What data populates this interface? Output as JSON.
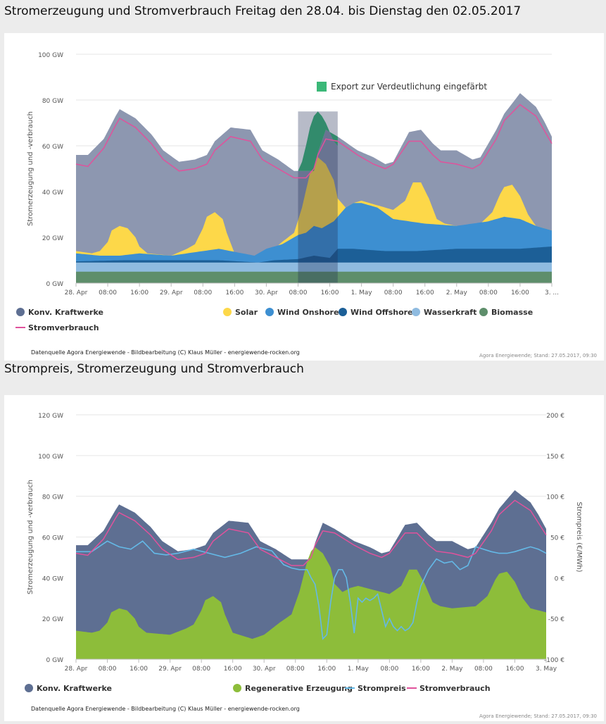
{
  "page": {
    "title1": "Stromerzeugung und Stromverbrauch  Freitag den 28.04. bis Dienstag den 02.05.2017",
    "title2": "Strompreis, Stromerzeugung und Stromverbrauch"
  },
  "colors": {
    "konv": "#8d97b0",
    "konv2": "#5e6f92",
    "solar": "#fdd849",
    "wind_onshore": "#3d8fd1",
    "wind_offshore": "#1c5f97",
    "wasserkraft": "#8fbbe0",
    "biomasse": "#5e8e6b",
    "export": "#3bb878",
    "verbrauch": "#e0529c",
    "strompreis": "#64b9e7",
    "regenerativ": "#8dbd3a"
  },
  "chart_data": [
    {
      "type": "area",
      "title": "Stromerzeugung und Stromverbrauch  Freitag den 28.04. bis Dienstag den 02.05.2017",
      "xlabel": "",
      "ylabel": "Stromerzeugung und -verbrauch",
      "ylim": [
        0,
        100
      ],
      "yticks": [
        "0 GW",
        "20 GW",
        "40 GW",
        "60 GW",
        "80 GW",
        "100 GW"
      ],
      "xticks": [
        "28. Apr",
        "08:00",
        "16:00",
        "29. Apr",
        "08:00",
        "16:00",
        "30. Apr",
        "08:00",
        "16:00",
        "1. May",
        "08:00",
        "16:00",
        "2. May",
        "08:00",
        "16:00",
        "3. ..."
      ],
      "x_hours": [
        0,
        8,
        16,
        24,
        32,
        40,
        48,
        56,
        64,
        72,
        80,
        88,
        96,
        104,
        112,
        120
      ],
      "x_range": [
        0,
        120
      ],
      "highlight_hours": [
        56,
        66
      ],
      "annotation": "Export zur Verdeutlichung eingefärbt",
      "series": [
        {
          "name": "Konv. Kraftwerke",
          "kind": "total",
          "x": [
            0,
            3,
            7,
            10,
            11,
            15,
            19,
            22,
            26,
            30,
            33,
            35,
            39,
            44,
            47,
            51,
            55,
            58,
            60,
            61,
            63,
            66,
            71,
            75,
            78,
            80,
            84,
            87,
            90,
            92,
            96,
            100,
            102,
            106,
            108,
            112,
            116,
            118,
            120
          ],
          "values": [
            56,
            56,
            63,
            73,
            76,
            72,
            65,
            58,
            53,
            54,
            56,
            62,
            68,
            67,
            58,
            54,
            49,
            49,
            49,
            57,
            67,
            64,
            58,
            55,
            52,
            53,
            66,
            67,
            61,
            58,
            58,
            54,
            55,
            67,
            74,
            83,
            77,
            71,
            64
          ]
        },
        {
          "name": "Export",
          "kind": "export_top",
          "x": [
            56,
            57,
            58,
            59,
            60,
            61,
            62,
            63,
            64,
            65,
            66
          ],
          "values": [
            49,
            53,
            60,
            68,
            73,
            75,
            73,
            70,
            66,
            62,
            60
          ]
        },
        {
          "name": "Solar",
          "kind": "top",
          "x": [
            0,
            4,
            6,
            8,
            9,
            11,
            13,
            15,
            16,
            18,
            24,
            28,
            30,
            32,
            33,
            35,
            37,
            38,
            40,
            45,
            48,
            52,
            55,
            57,
            59,
            60,
            61,
            63,
            65,
            66,
            68,
            70,
            72,
            76,
            80,
            83,
            84,
            85,
            87,
            89,
            91,
            93,
            96,
            102,
            105,
            107,
            108,
            110,
            112,
            114,
            116,
            120
          ],
          "values": [
            14,
            13,
            14,
            18,
            23,
            25,
            24,
            20,
            16,
            13,
            12,
            15,
            17,
            24,
            29,
            31,
            28,
            22,
            13,
            10,
            12,
            18,
            22,
            33,
            48,
            53,
            55,
            52,
            45,
            37,
            33,
            35,
            36,
            34,
            32,
            36,
            40,
            44,
            44,
            37,
            28,
            26,
            25,
            26,
            31,
            39,
            42,
            43,
            38,
            30,
            25,
            23
          ]
        },
        {
          "name": "Wind Onshore",
          "kind": "top",
          "x": [
            0,
            6,
            11,
            16,
            24,
            32,
            36,
            42,
            45,
            48,
            52,
            56,
            58,
            60,
            62,
            65,
            68,
            70,
            72,
            76,
            80,
            88,
            96,
            104,
            108,
            112,
            116,
            120
          ],
          "values": [
            13,
            12,
            12,
            13,
            12,
            14,
            15,
            13,
            12,
            15,
            17,
            21,
            22,
            25,
            24,
            27,
            33,
            35,
            35,
            33,
            28,
            26,
            25,
            27,
            29,
            28,
            25,
            23
          ]
        },
        {
          "name": "Wind Offshore",
          "kind": "top",
          "x": [
            0,
            12,
            24,
            36,
            46,
            50,
            56,
            60,
            64,
            66,
            70,
            78,
            86,
            96,
            104,
            112,
            120
          ],
          "values": [
            9.5,
            10,
            10,
            10,
            9,
            10,
            10.5,
            12,
            11,
            15,
            15,
            14,
            14,
            15,
            15,
            15,
            16
          ]
        },
        {
          "name": "Wasserkraft",
          "kind": "top",
          "x": [
            0,
            120
          ],
          "values": [
            9,
            9
          ]
        },
        {
          "name": "Biomasse",
          "kind": "top",
          "x": [
            0,
            120
          ],
          "values": [
            5,
            5
          ]
        },
        {
          "name": "Stromverbrauch",
          "kind": "line",
          "x": [
            0,
            3,
            7,
            10,
            11,
            15,
            19,
            22,
            26,
            30,
            33,
            35,
            39,
            44,
            47,
            51,
            55,
            58,
            60,
            61,
            63,
            66,
            71,
            75,
            78,
            80,
            84,
            87,
            90,
            92,
            96,
            100,
            102,
            106,
            108,
            112,
            116,
            118,
            120
          ],
          "values": [
            52,
            51,
            59,
            69,
            72,
            68,
            61,
            54,
            49,
            50,
            52,
            58,
            64,
            62,
            54,
            50,
            46,
            46,
            50,
            56,
            63,
            62,
            56,
            52,
            50,
            52,
            62,
            62,
            56,
            53,
            52,
            50,
            52,
            63,
            71,
            78,
            73,
            67,
            61
          ]
        }
      ],
      "legend": [
        "Konv. Kraftwerke",
        "Solar",
        "Wind Onshore",
        "Wind Offshore",
        "Wasserkraft",
        "Biomasse",
        "Stromverbrauch"
      ],
      "source": "Datenquelle Agora Energiewende - Bildbearbeitung  (C) Klaus Müller - energiewende-rocken.org",
      "credit": "Agora Energiewende; Stand: 27.05.2017, 09:30"
    },
    {
      "type": "area",
      "title": "Strompreis, Stromerzeugung und Stromverbrauch",
      "xlabel": "",
      "ylabel": "Stromerzeugung und -verbrauch",
      "y2label": "Strompreis (€/MWh)",
      "ylim": [
        0,
        120
      ],
      "y2lim": [
        -100,
        200
      ],
      "yticks": [
        "0 GW",
        "20 GW",
        "40 GW",
        "60 GW",
        "80 GW",
        "100 GW",
        "120 GW"
      ],
      "y2ticks": [
        "-100 €",
        "-50 €",
        "0 €",
        "50 €",
        "100 €",
        "150 €",
        "200 €"
      ],
      "xticks": [
        "28. Apr",
        "08:00",
        "16:00",
        "29. Apr",
        "08:00",
        "16:00",
        "30. Apr",
        "08:00",
        "16:00",
        "1. May",
        "08:00",
        "16:00",
        "2. May",
        "08:00",
        "16:00",
        "3. May"
      ],
      "x_hours": [
        0,
        8,
        16,
        24,
        32,
        40,
        48,
        56,
        64,
        72,
        80,
        88,
        96,
        104,
        112,
        120
      ],
      "x_range": [
        0,
        120
      ],
      "series": [
        {
          "name": "Konv. Kraftwerke",
          "kind": "total",
          "x": [
            0,
            3,
            7,
            10,
            11,
            15,
            19,
            22,
            26,
            30,
            33,
            35,
            39,
            44,
            47,
            51,
            55,
            58,
            60,
            61,
            63,
            66,
            71,
            75,
            78,
            80,
            84,
            87,
            90,
            92,
            96,
            100,
            102,
            106,
            108,
            112,
            116,
            118,
            120
          ],
          "values": [
            56,
            56,
            63,
            73,
            76,
            72,
            65,
            58,
            53,
            54,
            56,
            62,
            68,
            67,
            58,
            54,
            49,
            49,
            49,
            57,
            67,
            64,
            58,
            55,
            52,
            53,
            66,
            67,
            61,
            58,
            58,
            54,
            55,
            67,
            74,
            83,
            77,
            71,
            64
          ]
        },
        {
          "name": "Regenerative Erzeugung",
          "kind": "top",
          "x": [
            0,
            4,
            6,
            8,
            9,
            11,
            13,
            15,
            16,
            18,
            24,
            28,
            30,
            32,
            33,
            35,
            37,
            38,
            40,
            45,
            48,
            52,
            55,
            57,
            59,
            60,
            61,
            63,
            65,
            66,
            68,
            70,
            72,
            76,
            80,
            83,
            84,
            85,
            87,
            89,
            91,
            93,
            96,
            102,
            105,
            107,
            108,
            110,
            112,
            114,
            116,
            120
          ],
          "values": [
            14,
            13,
            14,
            18,
            23,
            25,
            24,
            20,
            16,
            13,
            12,
            15,
            17,
            24,
            29,
            31,
            28,
            22,
            13,
            10,
            12,
            18,
            22,
            33,
            48,
            53,
            55,
            52,
            45,
            37,
            33,
            35,
            36,
            34,
            32,
            36,
            40,
            44,
            44,
            37,
            28,
            26,
            25,
            26,
            31,
            39,
            42,
            43,
            38,
            30,
            25,
            23
          ]
        },
        {
          "name": "Strompreis",
          "kind": "price",
          "x": [
            0,
            4,
            8,
            11,
            14,
            17,
            20,
            23,
            26,
            30,
            34,
            38,
            42,
            46,
            50,
            53,
            55,
            57,
            59,
            60,
            61,
            62,
            63,
            64,
            65,
            66,
            67,
            68,
            69,
            70,
            71,
            72,
            73,
            74,
            75,
            76,
            77,
            78,
            79,
            80,
            81,
            82,
            83,
            84,
            85,
            86,
            87,
            88,
            90,
            92,
            94,
            96,
            98,
            100,
            102,
            104,
            106,
            108,
            110,
            112,
            114,
            116,
            118,
            120
          ],
          "values": [
            32,
            32,
            45,
            38,
            35,
            45,
            30,
            28,
            30,
            35,
            30,
            25,
            30,
            38,
            33,
            16,
            12,
            10,
            10,
            0,
            -8,
            -35,
            -75,
            -70,
            -30,
            0,
            10,
            10,
            0,
            -30,
            -68,
            -25,
            -30,
            -25,
            -28,
            -25,
            -20,
            -40,
            -60,
            -50,
            -60,
            -65,
            -60,
            -65,
            -62,
            -55,
            -30,
            -10,
            10,
            23,
            18,
            20,
            10,
            15,
            38,
            35,
            32,
            30,
            30,
            32,
            35,
            38,
            35,
            30
          ]
        },
        {
          "name": "Stromverbrauch",
          "kind": "line",
          "x": [
            0,
            3,
            7,
            10,
            11,
            15,
            19,
            22,
            26,
            30,
            33,
            35,
            39,
            44,
            47,
            51,
            55,
            58,
            60,
            61,
            63,
            66,
            71,
            75,
            78,
            80,
            84,
            87,
            90,
            92,
            96,
            100,
            102,
            106,
            108,
            112,
            116,
            118,
            120
          ],
          "values": [
            52,
            51,
            59,
            69,
            72,
            68,
            61,
            54,
            49,
            50,
            52,
            58,
            64,
            62,
            54,
            50,
            46,
            46,
            50,
            56,
            63,
            62,
            56,
            52,
            50,
            52,
            62,
            62,
            56,
            53,
            52,
            50,
            52,
            63,
            71,
            78,
            73,
            67,
            61
          ]
        }
      ],
      "legend": [
        "Konv. Kraftwerke",
        "Regenerative Erzeugung",
        "Strompreis",
        "Stromverbrauch"
      ],
      "source": "Datenquelle Agora Energiewende - Bildbearbeitung  (C) Klaus Müller - energiewende-rocken.org",
      "credit": "Agora Energiewende; Stand: 27.05.2017, 09:30"
    }
  ]
}
